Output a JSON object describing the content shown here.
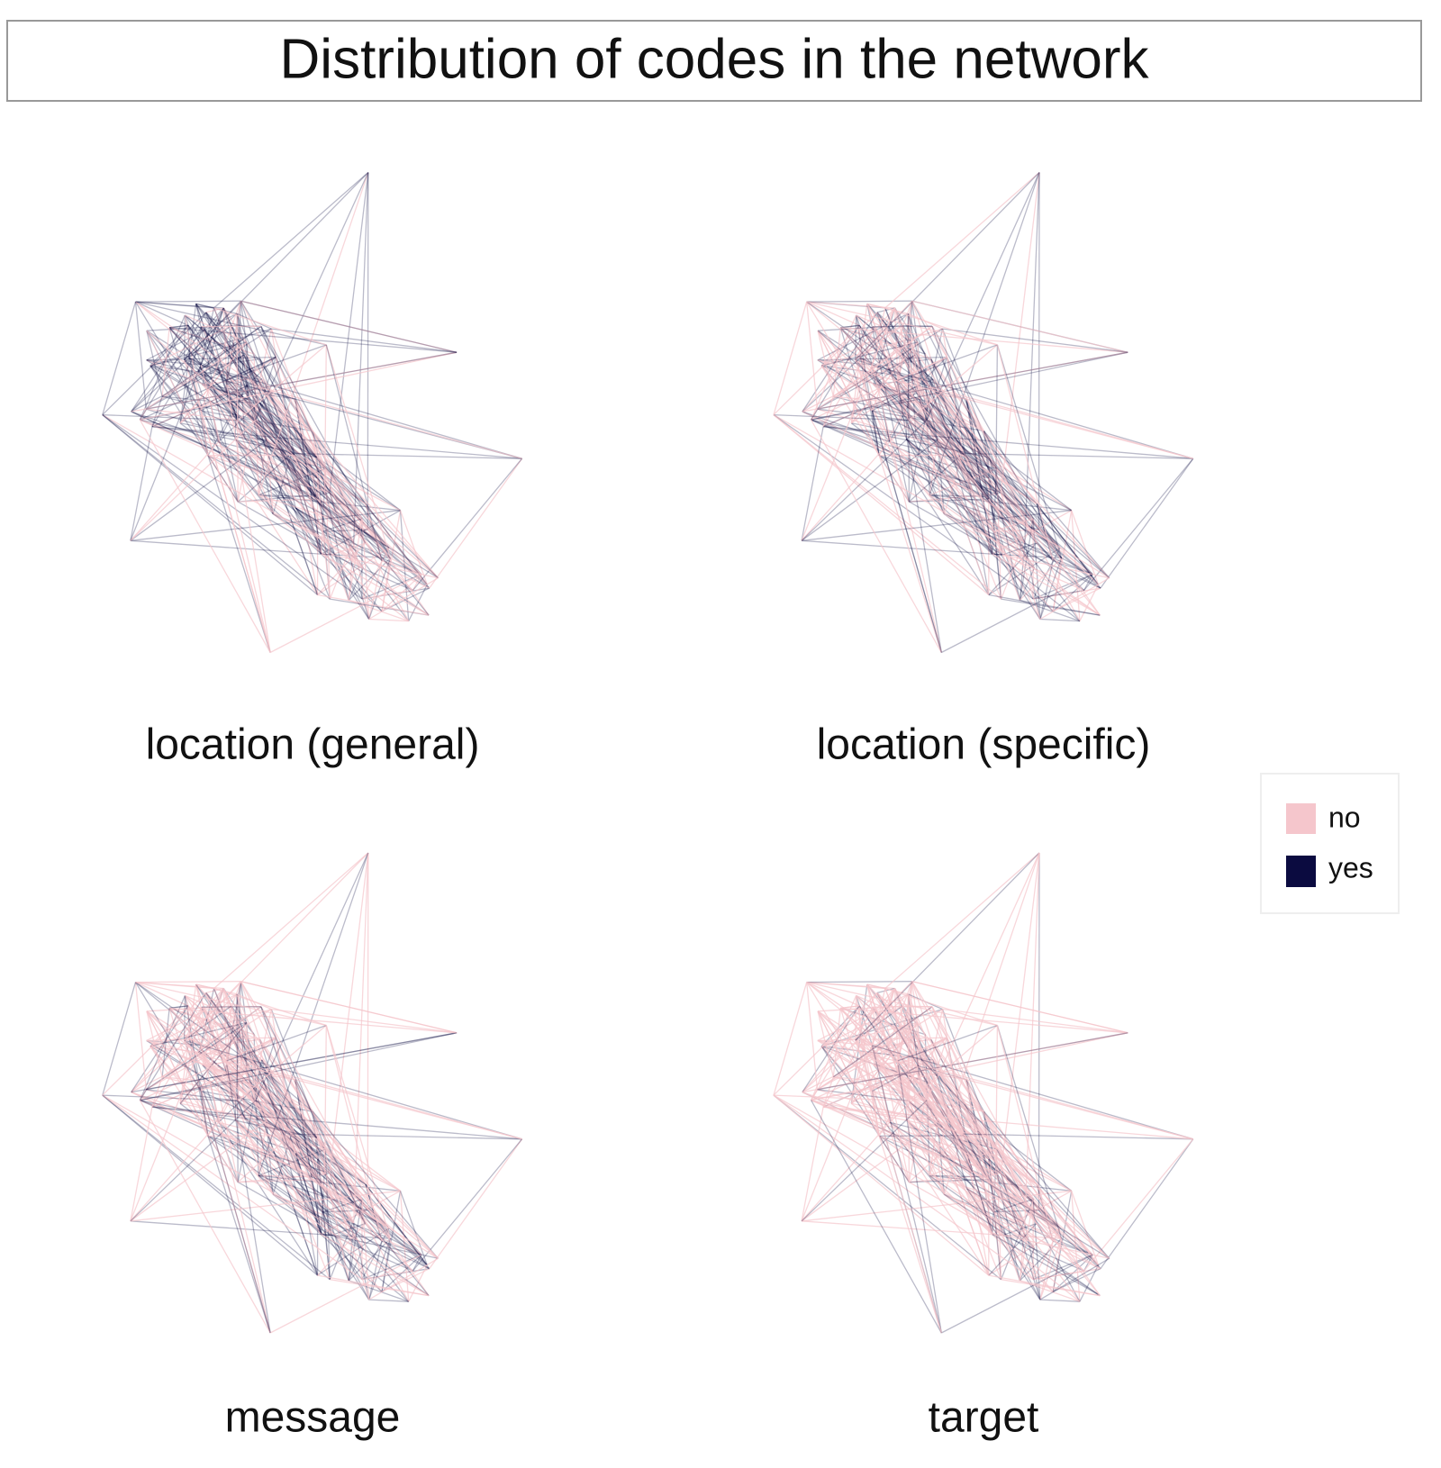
{
  "title": "Distribution of codes in the network",
  "panels": [
    {
      "label": "location (general)"
    },
    {
      "label": "location (specific)"
    },
    {
      "label": "message"
    },
    {
      "label": "target"
    }
  ],
  "legend": {
    "items": [
      {
        "label": "no",
        "color": "#f5c6cc"
      },
      {
        "label": "yes",
        "color": "#0b0b40"
      }
    ]
  }
}
